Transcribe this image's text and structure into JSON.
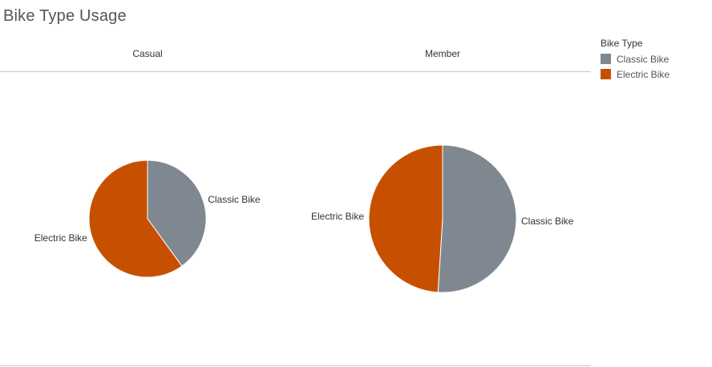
{
  "title": "Bike Type Usage",
  "colors": {
    "classic": "#7f8790",
    "electric": "#c75000"
  },
  "legend": {
    "title": "Bike Type",
    "items": [
      {
        "label": "Classic Bike",
        "color": "#7f8790"
      },
      {
        "label": "Electric Bike",
        "color": "#c75000"
      }
    ]
  },
  "chart_data": [
    {
      "type": "pie",
      "panel": "Casual",
      "slices": [
        {
          "label": "Classic Bike",
          "value": 40.0,
          "color": "#7f8790"
        },
        {
          "label": "Electric Bike",
          "value": 60.0,
          "color": "#c75000"
        }
      ]
    },
    {
      "type": "pie",
      "panel": "Member",
      "slices": [
        {
          "label": "Classic Bike",
          "value": 51.0,
          "color": "#7f8790"
        },
        {
          "label": "Electric Bike",
          "value": 49.0,
          "color": "#c75000"
        }
      ]
    }
  ]
}
